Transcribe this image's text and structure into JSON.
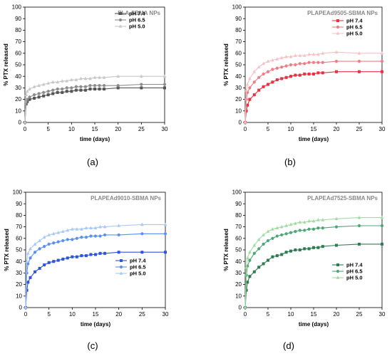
{
  "chart_data": [
    {
      "type": "line",
      "panel_label": "(a)",
      "title": "PLA-SBMA NPs",
      "xlabel": "time (days)",
      "ylabel": "% PTX released",
      "xlim": [
        0,
        30
      ],
      "ylim": [
        0,
        100
      ],
      "xticks": [
        0,
        5,
        10,
        15,
        20,
        25,
        30
      ],
      "yticks": [
        0,
        10,
        20,
        30,
        40,
        50,
        60,
        70,
        80,
        90,
        100
      ],
      "legend_position": "top-right",
      "colors": [
        "#555555",
        "#8c8c8c",
        "#c8c8c8"
      ],
      "x": [
        0,
        0.25,
        0.5,
        1,
        2,
        3,
        4,
        5,
        6,
        7,
        8,
        9,
        10,
        11,
        12,
        13,
        14,
        15,
        16,
        17,
        20,
        25,
        30
      ],
      "series": [
        {
          "name": "pH 7.4",
          "values": [
            0,
            16,
            18,
            20,
            21,
            22,
            23,
            24,
            25,
            26,
            26,
            27,
            27,
            28,
            28,
            28,
            29,
            29,
            29,
            29,
            30,
            30,
            30
          ]
        },
        {
          "name": "pH 6.5",
          "values": [
            0,
            18,
            20,
            22,
            24,
            25,
            26,
            27,
            28,
            29,
            29,
            30,
            30,
            31,
            31,
            31,
            32,
            32,
            32,
            32,
            32,
            33,
            33
          ]
        },
        {
          "name": "pH 5.0",
          "values": [
            0,
            24,
            27,
            29,
            31,
            32,
            33,
            34,
            35,
            35,
            36,
            36,
            37,
            37,
            38,
            38,
            38,
            39,
            39,
            39,
            40,
            40,
            40
          ]
        }
      ]
    },
    {
      "type": "line",
      "panel_label": "(b)",
      "title": "PLAPEAd9505-SBMA NPs",
      "xlabel": "time (days)",
      "ylabel": "% PTX released",
      "xlim": [
        0,
        30
      ],
      "ylim": [
        0,
        100
      ],
      "xticks": [
        0,
        5,
        10,
        15,
        20,
        25,
        30
      ],
      "yticks": [
        0,
        10,
        20,
        30,
        40,
        50,
        60,
        70,
        80,
        90,
        100
      ],
      "legend_position": "top-right",
      "colors": [
        "#e8323f",
        "#ef7d85",
        "#f6c2c5"
      ],
      "x": [
        0,
        0.25,
        0.5,
        1,
        2,
        3,
        4,
        5,
        6,
        7,
        8,
        9,
        10,
        11,
        12,
        13,
        14,
        15,
        16,
        17,
        20,
        25,
        30
      ],
      "series": [
        {
          "name": "pH 7.4",
          "values": [
            0,
            10,
            15,
            20,
            24,
            28,
            31,
            33,
            35,
            37,
            38,
            39,
            40,
            41,
            41,
            42,
            42,
            42,
            43,
            43,
            44,
            44,
            44
          ]
        },
        {
          "name": "pH 6.5",
          "values": [
            0,
            20,
            26,
            30,
            35,
            39,
            42,
            44,
            46,
            47,
            48,
            49,
            50,
            50,
            51,
            51,
            52,
            52,
            52,
            52,
            53,
            53,
            53
          ]
        },
        {
          "name": "pH 5.0",
          "values": [
            0,
            28,
            33,
            38,
            44,
            48,
            51,
            53,
            54,
            55,
            56,
            57,
            57,
            58,
            58,
            58,
            59,
            59,
            59,
            60,
            61,
            60,
            60
          ]
        }
      ]
    },
    {
      "type": "line",
      "panel_label": "(c)",
      "title": "PLAPEAd9010-SBMA NPs",
      "xlabel": "time (days)",
      "ylabel": "% PTX released",
      "xlim": [
        0,
        30
      ],
      "ylim": [
        0,
        100
      ],
      "xticks": [
        0,
        5,
        10,
        15,
        20,
        25,
        30
      ],
      "yticks": [
        0,
        10,
        20,
        30,
        40,
        50,
        60,
        70,
        80,
        90,
        100
      ],
      "legend_position": "bottom-right",
      "colors": [
        "#2f55d8",
        "#5b8ff0",
        "#a8c8f6"
      ],
      "x": [
        0,
        0.25,
        0.5,
        1,
        2,
        3,
        4,
        5,
        6,
        7,
        8,
        9,
        10,
        11,
        12,
        13,
        14,
        15,
        16,
        17,
        20,
        25,
        30
      ],
      "series": [
        {
          "name": "pH 7.4",
          "values": [
            0,
            15,
            22,
            26,
            31,
            34,
            37,
            39,
            40,
            41,
            42,
            43,
            44,
            44,
            45,
            45,
            46,
            46,
            47,
            47,
            48,
            48,
            48
          ]
        },
        {
          "name": "pH 6.5",
          "values": [
            0,
            30,
            38,
            43,
            48,
            51,
            53,
            55,
            56,
            57,
            58,
            59,
            59,
            60,
            61,
            61,
            62,
            62,
            62,
            63,
            63,
            64,
            64
          ]
        },
        {
          "name": "pH 5.0",
          "values": [
            0,
            40,
            47,
            51,
            55,
            58,
            61,
            63,
            64,
            65,
            66,
            67,
            68,
            68,
            68,
            69,
            69,
            69,
            70,
            70,
            71,
            72,
            72
          ]
        }
      ]
    },
    {
      "type": "line",
      "panel_label": "(d)",
      "title": "PLAPEAd7525-SBMA NPs",
      "xlabel": "time (days)",
      "ylabel": "% PTX released",
      "xlim": [
        0,
        30
      ],
      "ylim": [
        0,
        100
      ],
      "xticks": [
        0,
        5,
        10,
        15,
        20,
        25,
        30
      ],
      "yticks": [
        0,
        10,
        20,
        30,
        40,
        50,
        60,
        70,
        80,
        90,
        100
      ],
      "legend_position": "bottom-right",
      "colors": [
        "#2e7d52",
        "#4ca677",
        "#a3dba3"
      ],
      "x": [
        0,
        0.25,
        0.5,
        1,
        2,
        3,
        4,
        5,
        6,
        7,
        8,
        9,
        10,
        11,
        12,
        13,
        14,
        15,
        16,
        17,
        20,
        25,
        30
      ],
      "series": [
        {
          "name": "pH 7.4",
          "values": [
            0,
            15,
            22,
            27,
            31,
            35,
            38,
            41,
            44,
            45,
            46,
            48,
            49,
            50,
            50,
            51,
            51,
            52,
            52,
            53,
            54,
            55,
            55
          ]
        },
        {
          "name": "pH 6.5",
          "values": [
            0,
            28,
            36,
            41,
            47,
            51,
            55,
            58,
            60,
            62,
            63,
            64,
            65,
            66,
            67,
            67,
            68,
            68,
            69,
            69,
            70,
            71,
            71
          ]
        },
        {
          "name": "pH 5.0",
          "values": [
            0,
            35,
            43,
            48,
            54,
            59,
            63,
            66,
            68,
            69,
            70,
            71,
            72,
            73,
            74,
            74,
            75,
            75,
            76,
            76,
            77,
            78,
            78
          ]
        }
      ]
    }
  ]
}
